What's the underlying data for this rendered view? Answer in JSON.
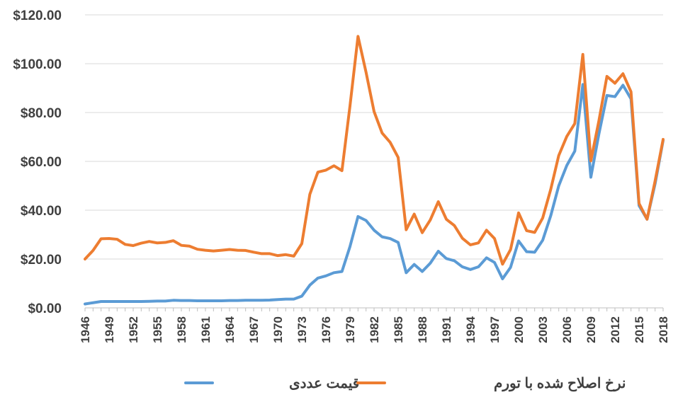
{
  "chart_data": {
    "type": "line",
    "title": "",
    "xlabel": "",
    "ylabel": "",
    "ylim": [
      0,
      120
    ],
    "xlim": [
      1946,
      2018
    ],
    "y_ticks": [
      0,
      20,
      40,
      60,
      80,
      100,
      120
    ],
    "y_tick_labels": [
      "$0.00",
      "$20.00",
      "$40.00",
      "$60.00",
      "$80.00",
      "$100.00",
      "$120.00"
    ],
    "x_tick_labels": [
      "1946",
      "1949",
      "1952",
      "1955",
      "1958",
      "1961",
      "1964",
      "1967",
      "1970",
      "1973",
      "1976",
      "1979",
      "1982",
      "1985",
      "1988",
      "1991",
      "1994",
      "1997",
      "2000",
      "2003",
      "2006",
      "2009",
      "2012",
      "2015",
      "2018"
    ],
    "grid": "horizontal",
    "legend": "bottom",
    "x": [
      1946,
      1947,
      1948,
      1949,
      1950,
      1951,
      1952,
      1953,
      1954,
      1955,
      1956,
      1957,
      1958,
      1959,
      1960,
      1961,
      1962,
      1963,
      1964,
      1965,
      1966,
      1967,
      1968,
      1969,
      1970,
      1971,
      1972,
      1973,
      1974,
      1975,
      1976,
      1977,
      1978,
      1979,
      1980,
      1981,
      1982,
      1983,
      1984,
      1985,
      1986,
      1987,
      1988,
      1989,
      1990,
      1991,
      1992,
      1993,
      1994,
      1995,
      1996,
      1997,
      1998,
      1999,
      2000,
      2001,
      2002,
      2003,
      2004,
      2005,
      2006,
      2007,
      2008,
      2009,
      2010,
      2011,
      2012,
      2013,
      2014,
      2015,
      2016,
      2017,
      2018
    ],
    "series": [
      {
        "name": "قیمت عددی",
        "color": "#5B9BD5",
        "values": [
          1.6,
          2.1,
          2.6,
          2.6,
          2.6,
          2.6,
          2.6,
          2.6,
          2.7,
          2.8,
          2.8,
          3.1,
          3.0,
          3.0,
          2.9,
          2.9,
          2.9,
          2.9,
          3.0,
          3.0,
          3.1,
          3.1,
          3.1,
          3.2,
          3.4,
          3.6,
          3.6,
          4.8,
          9.3,
          12.2,
          13.1,
          14.4,
          14.9,
          25.1,
          37.4,
          35.8,
          31.8,
          29.1,
          28.4,
          26.8,
          14.4,
          17.8,
          14.9,
          18.3,
          23.2,
          20.2,
          19.3,
          16.8,
          15.7,
          16.8,
          20.5,
          18.6,
          11.9,
          16.6,
          27.4,
          23.0,
          22.8,
          27.7,
          37.7,
          50.0,
          58.3,
          64.2,
          91.5,
          53.5,
          71.2,
          87.0,
          86.5,
          91.2,
          85.6,
          41.9,
          36.3,
          50.8,
          68.6
        ]
      },
      {
        "name": "نرخ اصلاح شده با تورم",
        "color": "#ED7D31",
        "values": [
          20.0,
          23.5,
          28.3,
          28.4,
          28.1,
          26.0,
          25.5,
          26.5,
          27.2,
          26.6,
          26.8,
          27.5,
          25.6,
          25.3,
          24.0,
          23.6,
          23.3,
          23.6,
          23.9,
          23.6,
          23.5,
          22.8,
          22.2,
          22.2,
          21.4,
          21.8,
          21.2,
          26.3,
          46.5,
          55.6,
          56.4,
          58.2,
          56.2,
          82.7,
          111.2,
          96.5,
          80.4,
          71.6,
          67.8,
          61.6,
          32.0,
          38.4,
          30.8,
          36.0,
          43.5,
          36.3,
          33.7,
          28.5,
          25.8,
          26.6,
          31.8,
          28.4,
          17.9,
          23.9,
          38.9,
          31.6,
          30.9,
          36.8,
          48.5,
          62.4,
          70.2,
          75.5,
          103.8,
          60.2,
          76.6,
          94.8,
          92.0,
          95.9,
          88.5,
          42.8,
          36.3,
          52.0,
          69.0
        ]
      }
    ]
  }
}
